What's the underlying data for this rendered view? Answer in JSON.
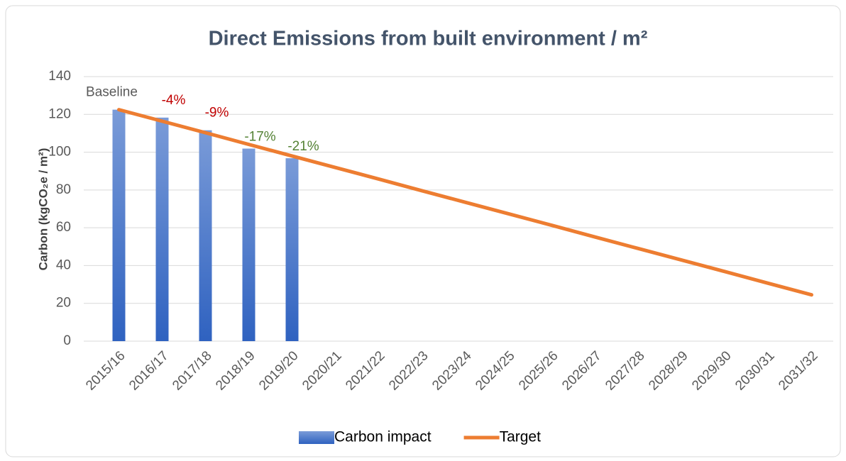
{
  "chart_data": {
    "type": "bar_line",
    "title": "Direct Emissions from built environment / m²",
    "y_axis_label": "Carbon (kgCO₂e / m²)",
    "categories": [
      "2015/16",
      "2016/17",
      "2017/18",
      "2018/19",
      "2019/20",
      "2020/21",
      "2021/22",
      "2022/23",
      "2023/24",
      "2024/25",
      "2025/26",
      "2026/27",
      "2027/28",
      "2028/29",
      "2029/30",
      "2030/31",
      "2031/32"
    ],
    "series": [
      {
        "name": "Carbon impact",
        "kind": "bar",
        "color": "#4472c4",
        "values": [
          122.5,
          118.3,
          111.6,
          101.9,
          96.8,
          null,
          null,
          null,
          null,
          null,
          null,
          null,
          null,
          null,
          null,
          null,
          null
        ]
      },
      {
        "name": "Target",
        "kind": "line",
        "color": "#ed7d31",
        "values": [
          122.5,
          116.4,
          110.3,
          104.1,
          98.0,
          91.9,
          85.8,
          79.6,
          73.5,
          67.4,
          61.3,
          55.1,
          49.0,
          42.9,
          36.8,
          30.6,
          24.5
        ]
      }
    ],
    "bar_labels": [
      "Baseline",
      "-4%",
      "-9%",
      "-17%",
      "-21%"
    ],
    "bar_label_colors": [
      "#595959",
      "#c00000",
      "#c00000",
      "#548235",
      "#548235"
    ],
    "ylim": [
      0,
      140
    ],
    "yticks": [
      0,
      20,
      40,
      60,
      80,
      100,
      120,
      140
    ],
    "grid": true,
    "legend": "bottom"
  }
}
